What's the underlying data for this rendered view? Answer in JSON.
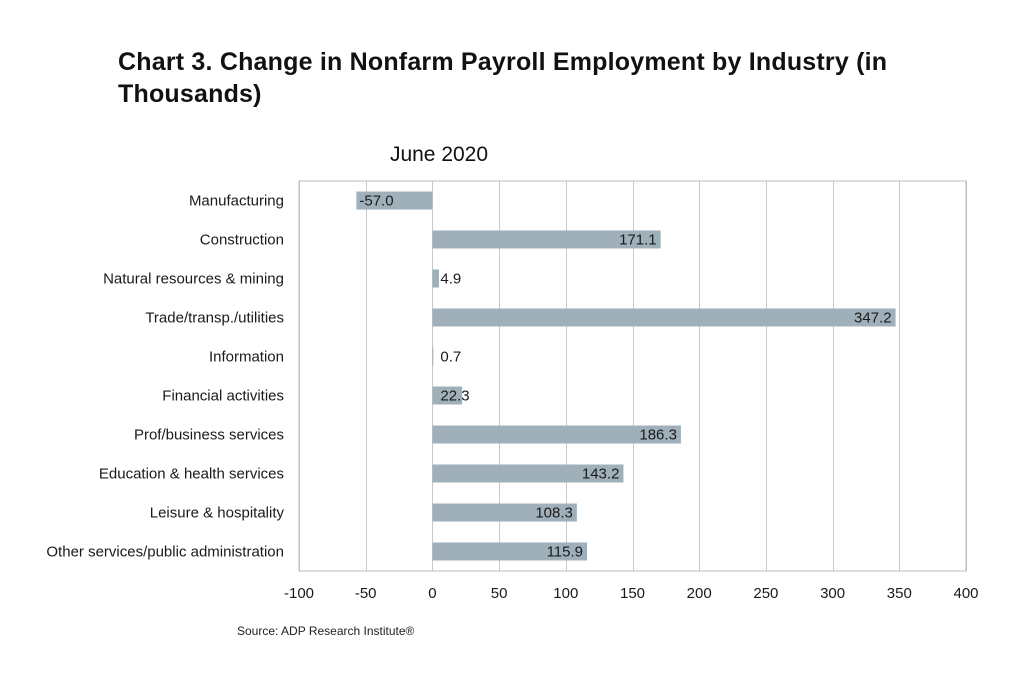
{
  "chart_data": {
    "type": "bar",
    "orientation": "horizontal",
    "title": "Chart 3. Change in Nonfarm Payroll Employment by Industry (in Thousands)",
    "subtitle": "June 2020",
    "source": "Source: ADP Research Institute®",
    "categories": [
      "Manufacturing",
      "Construction",
      "Natural resources & mining",
      "Trade/transp./utilities",
      "Information",
      "Financial activities",
      "Prof/business services",
      "Education & health services",
      "Leisure & hospitality",
      "Other services/public administration"
    ],
    "values": [
      -57.0,
      171.1,
      4.9,
      347.2,
      0.7,
      22.3,
      186.3,
      143.2,
      108.3,
      115.9
    ],
    "value_labels": [
      "-57.0",
      "171.1",
      "4.9",
      "347.2",
      "0.7",
      "22.3",
      "186.3",
      "143.2",
      "108.3",
      "115.9"
    ],
    "xlim": [
      -100,
      400
    ],
    "xticks": [
      -100,
      -50,
      0,
      50,
      100,
      150,
      200,
      250,
      300,
      350,
      400
    ],
    "xlabel": "",
    "ylabel": "",
    "grid": true,
    "legend": "none",
    "colors": {
      "bar": "#9fb0bb",
      "grid": "#c8c8c8",
      "frame": "#bdbdbd",
      "text": "#1a1a1a"
    }
  }
}
